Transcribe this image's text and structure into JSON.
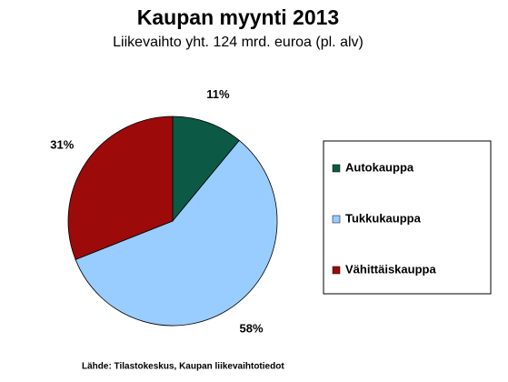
{
  "chart_data": {
    "type": "pie",
    "title": "Kaupan myynti 2013",
    "subtitle": "Liikevaihto yht. 124 mrd. euroa (pl. alv)",
    "categories": [
      "Autokauppa",
      "Tukkukauppa",
      "Vähittäiskauppa"
    ],
    "values": [
      11,
      58,
      31
    ],
    "value_labels": [
      "11%",
      "58%",
      "31%"
    ],
    "colors": [
      "#0c5a45",
      "#99ccff",
      "#9c0a0a"
    ],
    "legend": "right",
    "source": "Lähde: Tilastokeskus, Kaupan liikevaihtotiedot"
  }
}
